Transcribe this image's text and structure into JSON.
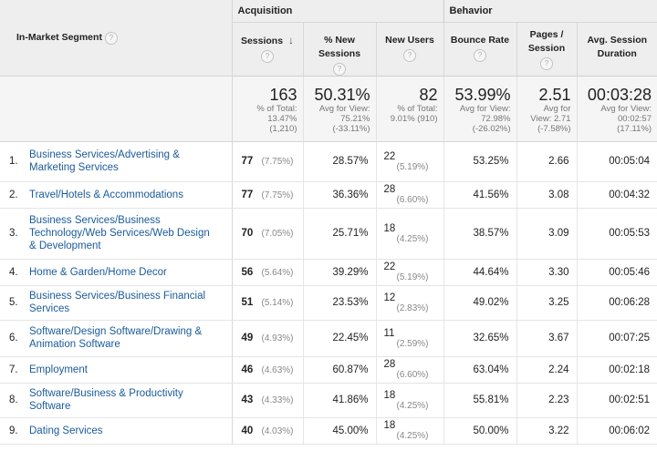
{
  "groups": {
    "acquisition": "Acquisition",
    "behavior": "Behavior"
  },
  "headers": {
    "segment": "In-Market Segment",
    "sessions": "Sessions",
    "sort_arrow": "↓",
    "pct_new_sessions": "% New Sessions",
    "new_users": "New Users",
    "bounce_rate": "Bounce Rate",
    "pages_session": "Pages / Session",
    "avg_session_duration": "Avg. Session Duration",
    "help_glyph": "?"
  },
  "totals": {
    "sessions": {
      "value": "163",
      "l1": "% of Total:",
      "l2": "13.47%",
      "l3": "(1,210)"
    },
    "pct_new_sessions": {
      "value": "50.31%",
      "l1": "Avg for View:",
      "l2": "75.21%",
      "l3": "(-33.11%)"
    },
    "new_users": {
      "value": "82",
      "l1": "% of Total:",
      "l2": "9.01% (910)"
    },
    "bounce_rate": {
      "value": "53.99%",
      "l1": "Avg for View:",
      "l2": "72.98%",
      "l3": "(-26.02%)"
    },
    "pages_session": {
      "value": "2.51",
      "l1": "Avg for",
      "l2": "View: 2.71",
      "l3": "(-7.58%)"
    },
    "avg_session_duration": {
      "value": "00:03:28",
      "l1": "Avg for View:",
      "l2": "00:02:57",
      "l3": "(17.11%)"
    }
  },
  "rows": [
    {
      "index": "1.",
      "segment": "Business Services/Advertising & Marketing Services",
      "sessions": "77",
      "sessions_pct": "(7.75%)",
      "pct_new": "28.57%",
      "new_users": "22",
      "new_users_pct": "(5.19%)",
      "bounce": "53.25%",
      "pages": "2.66",
      "duration": "00:05:04"
    },
    {
      "index": "2.",
      "segment": "Travel/Hotels & Accommodations",
      "sessions": "77",
      "sessions_pct": "(7.75%)",
      "pct_new": "36.36%",
      "new_users": "28",
      "new_users_pct": "(6.60%)",
      "bounce": "41.56%",
      "pages": "3.08",
      "duration": "00:04:32"
    },
    {
      "index": "3.",
      "segment": "Business Services/Business Technology/Web Services/Web Design & Development",
      "sessions": "70",
      "sessions_pct": "(7.05%)",
      "pct_new": "25.71%",
      "new_users": "18",
      "new_users_pct": "(4.25%)",
      "bounce": "38.57%",
      "pages": "3.09",
      "duration": "00:05:53"
    },
    {
      "index": "4.",
      "segment": "Home & Garden/Home Decor",
      "sessions": "56",
      "sessions_pct": "(5.64%)",
      "pct_new": "39.29%",
      "new_users": "22",
      "new_users_pct": "(5.19%)",
      "bounce": "44.64%",
      "pages": "3.30",
      "duration": "00:05:46"
    },
    {
      "index": "5.",
      "segment": "Business Services/Business Financial Services",
      "sessions": "51",
      "sessions_pct": "(5.14%)",
      "pct_new": "23.53%",
      "new_users": "12",
      "new_users_pct": "(2.83%)",
      "bounce": "49.02%",
      "pages": "3.25",
      "duration": "00:06:28"
    },
    {
      "index": "6.",
      "segment": "Software/Design Software/Drawing & Animation Software",
      "sessions": "49",
      "sessions_pct": "(4.93%)",
      "pct_new": "22.45%",
      "new_users": "11",
      "new_users_pct": "(2.59%)",
      "bounce": "32.65%",
      "pages": "3.67",
      "duration": "00:07:25"
    },
    {
      "index": "7.",
      "segment": "Employment",
      "sessions": "46",
      "sessions_pct": "(4.63%)",
      "pct_new": "60.87%",
      "new_users": "28",
      "new_users_pct": "(6.60%)",
      "bounce": "63.04%",
      "pages": "2.24",
      "duration": "00:02:18"
    },
    {
      "index": "8.",
      "segment": "Software/Business & Productivity Software",
      "sessions": "43",
      "sessions_pct": "(4.33%)",
      "pct_new": "41.86%",
      "new_users": "18",
      "new_users_pct": "(4.25%)",
      "bounce": "55.81%",
      "pages": "2.23",
      "duration": "00:02:51"
    },
    {
      "index": "9.",
      "segment": "Dating Services",
      "sessions": "40",
      "sessions_pct": "(4.03%)",
      "pct_new": "45.00%",
      "new_users": "18",
      "new_users_pct": "(4.25%)",
      "bounce": "50.00%",
      "pages": "3.22",
      "duration": "00:06:02"
    }
  ]
}
